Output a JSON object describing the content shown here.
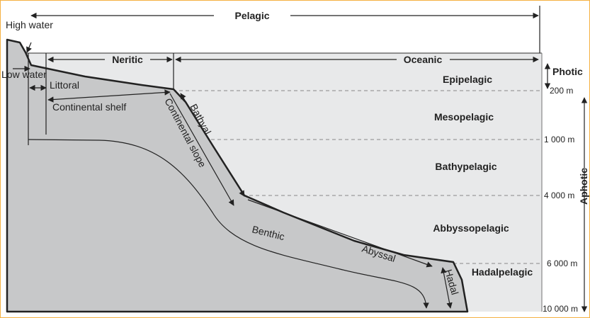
{
  "labels": {
    "high_water": "High water",
    "low_water": "Low water",
    "littoral": "Littoral",
    "continental_shelf": "Continental shelf",
    "continental_slope": "Continental slope",
    "bathyal": "Bathyal",
    "benthic": "Benthic",
    "abyssal": "Abyssal",
    "hadal": "Hadal",
    "pelagic": "Pelagic",
    "neritic": "Neritic",
    "oceanic": "Oceanic"
  },
  "zones": [
    "Epipelagic",
    "Mesopelagic",
    "Bathypelagic",
    "Abbyssopelagic",
    "Hadalpelagic"
  ],
  "depths": [
    "200 m",
    "1 000 m",
    "4 000 m",
    "6 000 m",
    "10 000 m"
  ],
  "light": {
    "photic": "Photic",
    "aphotic": "Aphotic"
  }
}
